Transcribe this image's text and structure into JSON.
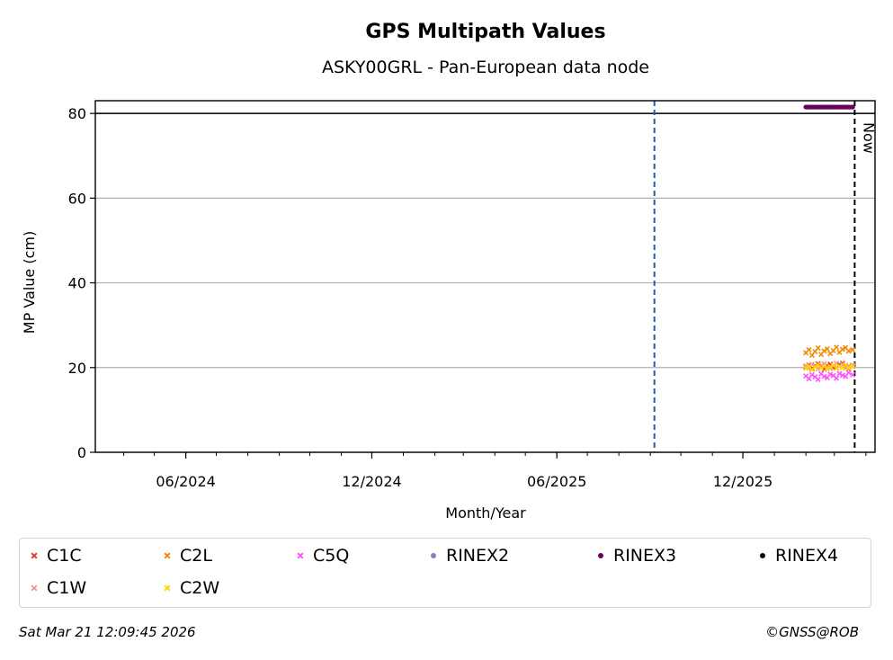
{
  "chart_data": {
    "type": "scatter",
    "title": "GPS Multipath Values",
    "subtitle": "ASKY00GRL - Pan-European data node",
    "xlabel": "Month/Year",
    "ylabel": "MP Value (cm)",
    "xlim": [
      "2024-03-04",
      "2026-04-10"
    ],
    "ylim": [
      0,
      83
    ],
    "yticks": [
      0,
      20,
      40,
      60,
      80
    ],
    "xticks": [
      {
        "date": "2024-06-01",
        "label": "06/2024"
      },
      {
        "date": "2024-12-01",
        "label": "12/2024"
      },
      {
        "date": "2025-06-01",
        "label": "06/2025"
      },
      {
        "date": "2025-12-01",
        "label": "12/2025"
      }
    ],
    "grid": "horizontal",
    "reference_lines": [
      {
        "type": "horizontal",
        "y": 80,
        "style": "solid",
        "color": "#000000"
      },
      {
        "type": "vertical",
        "x": "2025-09-05",
        "style": "dashed",
        "color": "#1f5fa8"
      },
      {
        "type": "vertical",
        "x": "2026-03-21",
        "style": "dashed",
        "color": "#000000",
        "label": "Now"
      }
    ],
    "series": [
      {
        "name": "C1C",
        "marker": "x",
        "color": "#e8392b",
        "x_range": [
          "2026-02-01",
          "2026-03-19"
        ],
        "values": [
          20.2,
          20.6,
          19.8,
          20.4,
          20.9,
          20.1,
          19.6,
          20.5,
          20.8,
          20.0,
          19.9,
          20.7,
          21.0,
          20.3,
          19.7,
          20.4
        ]
      },
      {
        "name": "C1W",
        "marker": "x",
        "color": "#f4989c",
        "x_range": [
          "2026-02-01",
          "2026-03-19"
        ],
        "values": [
          20.4,
          19.9,
          20.8,
          20.2,
          19.7,
          20.6,
          20.9,
          20.1,
          19.8,
          20.5,
          21.0,
          20.3,
          20.7,
          19.9,
          20.4,
          20.6
        ]
      },
      {
        "name": "C2L",
        "marker": "x",
        "color": "#f08c00",
        "x_range": [
          "2026-02-01",
          "2026-03-19"
        ],
        "values": [
          23.5,
          24.2,
          22.9,
          23.8,
          24.6,
          23.1,
          23.9,
          24.4,
          23.3,
          24.0,
          24.8,
          23.6,
          24.3,
          24.7,
          23.9,
          24.2
        ]
      },
      {
        "name": "C2W",
        "marker": "x",
        "color": "#ffd700",
        "x_range": [
          "2026-02-01",
          "2026-03-19"
        ],
        "values": [
          19.8,
          20.3,
          19.5,
          20.1,
          20.6,
          19.9,
          20.4,
          19.7,
          20.2,
          20.5,
          19.8,
          20.3,
          20.0,
          20.6,
          19.9,
          20.2
        ]
      },
      {
        "name": "C5Q",
        "marker": "x",
        "color": "#ff55ff",
        "x_range": [
          "2026-02-01",
          "2026-03-19"
        ],
        "values": [
          18.0,
          17.4,
          18.3,
          17.8,
          17.2,
          18.5,
          17.9,
          17.6,
          18.4,
          18.1,
          17.5,
          18.6,
          18.2,
          17.9,
          18.8,
          18.3
        ]
      },
      {
        "name": "RINEX2",
        "marker": "dot",
        "color": "#8c7bbd",
        "x_range": [],
        "values": []
      },
      {
        "name": "RINEX3",
        "marker": "dot",
        "color": "#6b0062",
        "x_range": [
          "2026-02-01",
          "2026-03-19"
        ],
        "values": [
          81.5,
          81.5,
          81.5,
          81.5,
          81.5,
          81.5,
          81.5,
          81.5,
          81.5,
          81.5,
          81.5,
          81.5,
          81.5,
          81.5,
          81.5,
          81.5
        ]
      },
      {
        "name": "RINEX4",
        "marker": "dot",
        "color": "#1a0016",
        "x_range": [],
        "values": []
      }
    ]
  },
  "legend": {
    "items": [
      {
        "name": "C1C",
        "marker": "cross",
        "color": "#e8392b"
      },
      {
        "name": "C2L",
        "marker": "cross",
        "color": "#f08c00"
      },
      {
        "name": "C5Q",
        "marker": "cross",
        "color": "#ff55ff"
      },
      {
        "name": "RINEX2",
        "marker": "dot",
        "color": "#8c7bbd"
      },
      {
        "name": "RINEX3",
        "marker": "dot",
        "color": "#6b0062"
      },
      {
        "name": "RINEX4",
        "marker": "dot",
        "color": "#1a0016"
      },
      {
        "name": "C1W",
        "marker": "cross",
        "color": "#f4989c"
      },
      {
        "name": "C2W",
        "marker": "cross",
        "color": "#ffd700"
      }
    ]
  },
  "footer": {
    "timestamp": "Sat Mar 21 12:09:45 2026",
    "copyright": "©GNSS@ROB"
  }
}
